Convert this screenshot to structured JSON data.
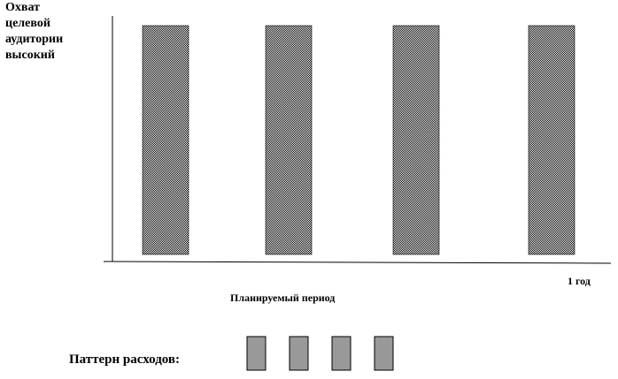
{
  "y_axis_label_lines": [
    "Охват",
    "целевой",
    "аудитории",
    "высокий"
  ],
  "x_axis_label": "Планируемый период",
  "period_end_label": "1 год",
  "spending_pattern_label": "Паттерн расходов:",
  "chart_data": {
    "type": "bar",
    "bars": 4,
    "level": "высокий",
    "bar_fill": "checkered-pattern",
    "bar_fill_colors": [
      "#000000",
      "#ffffff"
    ],
    "xlabel": "Планируемый период",
    "ylabel": "Охват целевой аудитории"
  },
  "spending_pattern": {
    "blocks": 4,
    "fill": "#999999",
    "border": "#000000"
  }
}
